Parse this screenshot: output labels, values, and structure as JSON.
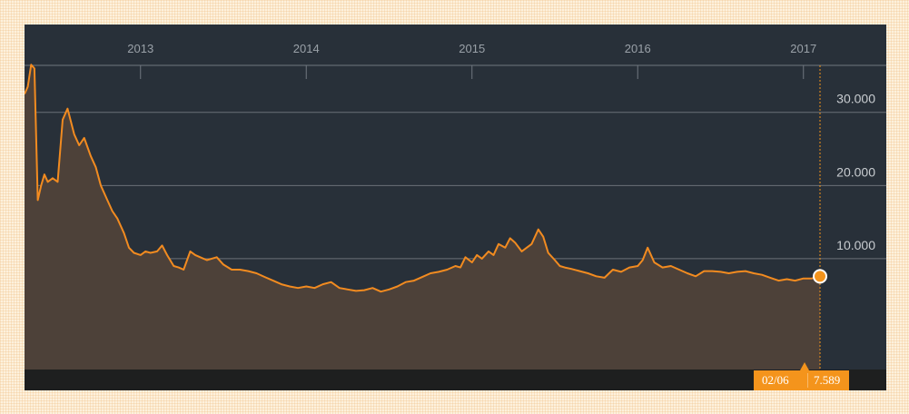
{
  "colors": {
    "background": "#283039",
    "line": "#f28b20",
    "area": "#4d4139",
    "grid": "#6b7178",
    "badge": "#f4941c"
  },
  "cursor": {
    "date": "02/06",
    "value": "7.589"
  },
  "chart_data": {
    "type": "area",
    "x_axis_position": "top",
    "y_axis_position": "right",
    "x_ticks": [
      "2013",
      "2014",
      "2015",
      "2016",
      "2017"
    ],
    "y_ticks": [
      "10.000",
      "20.000",
      "30.000"
    ],
    "y_tick_values": [
      10000,
      20000,
      30000
    ],
    "ylim": [
      -8000,
      42000
    ],
    "xlim": [
      2012.3,
      2017.5
    ],
    "grid": "horizontal",
    "series": [
      {
        "x": [
          2012.3,
          2012.32,
          2012.34,
          2012.36,
          2012.38,
          2012.4,
          2012.42,
          2012.44,
          2012.47,
          2012.5,
          2012.53,
          2012.56,
          2012.6,
          2012.63,
          2012.66,
          2012.7,
          2012.73,
          2012.76,
          2012.8,
          2012.83,
          2012.86,
          2012.9,
          2012.93,
          2012.96,
          2013.0,
          2013.03,
          2013.06,
          2013.1,
          2013.13,
          2013.16,
          2013.2,
          2013.23,
          2013.26,
          2013.3,
          2013.33,
          2013.36,
          2013.4,
          2013.43,
          2013.46,
          2013.5,
          2013.55,
          2013.6,
          2013.65,
          2013.7,
          2013.75,
          2013.8,
          2013.85,
          2013.9,
          2013.95,
          2014.0,
          2014.05,
          2014.1,
          2014.15,
          2014.2,
          2014.25,
          2014.3,
          2014.35,
          2014.4,
          2014.45,
          2014.5,
          2014.55,
          2014.6,
          2014.65,
          2014.7,
          2014.75,
          2014.8,
          2014.85,
          2014.9,
          2014.93,
          2014.96,
          2015.0,
          2015.03,
          2015.06,
          2015.1,
          2015.13,
          2015.16,
          2015.2,
          2015.23,
          2015.26,
          2015.3,
          2015.33,
          2015.36,
          2015.4,
          2015.43,
          2015.46,
          2015.5,
          2015.53,
          2015.56,
          2015.6,
          2015.65,
          2015.7,
          2015.75,
          2015.8,
          2015.85,
          2015.9,
          2015.95,
          2016.0,
          2016.03,
          2016.06,
          2016.1,
          2016.15,
          2016.2,
          2016.25,
          2016.3,
          2016.35,
          2016.4,
          2016.45,
          2016.5,
          2016.55,
          2016.6,
          2016.65,
          2016.7,
          2016.75,
          2016.8,
          2016.85,
          2016.9,
          2016.95,
          2017.0,
          2017.05,
          2017.1
        ],
        "values": [
          32500,
          33500,
          36500,
          36000,
          18000,
          20000,
          21500,
          20500,
          21000,
          20500,
          29000,
          30500,
          27000,
          25500,
          26500,
          24000,
          22500,
          20000,
          18000,
          16500,
          15500,
          13500,
          11500,
          10800,
          10500,
          11000,
          10800,
          11000,
          11800,
          10500,
          9000,
          8800,
          8500,
          11000,
          10500,
          10200,
          9800,
          10000,
          10200,
          9200,
          8500,
          8500,
          8300,
          8000,
          7500,
          7000,
          6500,
          6200,
          6000,
          6200,
          6000,
          6500,
          6800,
          6000,
          5800,
          5600,
          5700,
          6000,
          5500,
          5800,
          6200,
          6800,
          7000,
          7500,
          8000,
          8200,
          8500,
          9000,
          8800,
          10200,
          9500,
          10500,
          10000,
          11000,
          10500,
          12000,
          11500,
          12800,
          12200,
          11000,
          11500,
          12000,
          14000,
          13000,
          10800,
          9800,
          9000,
          8800,
          8600,
          8300,
          8000,
          7600,
          7400,
          8500,
          8200,
          8800,
          9000,
          9800,
          11500,
          9500,
          8800,
          9000,
          8500,
          8000,
          7600,
          8300,
          8300,
          8200,
          8000,
          8200,
          8300,
          8000,
          7800,
          7400,
          7000,
          7200,
          7000,
          7300,
          7300,
          7589
        ]
      }
    ]
  }
}
